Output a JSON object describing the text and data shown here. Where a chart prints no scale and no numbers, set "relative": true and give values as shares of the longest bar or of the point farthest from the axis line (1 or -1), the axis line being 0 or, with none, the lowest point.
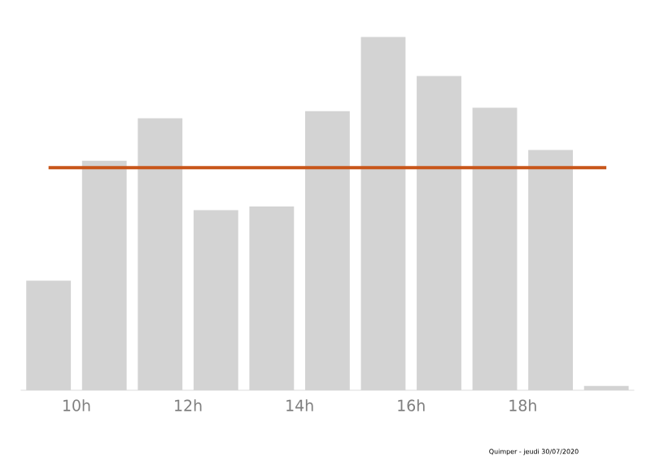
{
  "chart_data": {
    "type": "bar",
    "relative": true,
    "x": [
      9.5,
      10.5,
      11.5,
      12.5,
      13.5,
      14.5,
      15.5,
      16.5,
      17.5,
      18.5,
      19.5
    ],
    "values": [
      0.31,
      0.65,
      0.77,
      0.51,
      0.52,
      0.79,
      1,
      0.89,
      0.8,
      0.68,
      0.012
    ],
    "color": "#d3d3d3",
    "xlim": [
      9,
      20
    ],
    "xticks": [
      {
        "value": 10,
        "label": "10h"
      },
      {
        "value": 12,
        "label": "12h"
      },
      {
        "value": 14,
        "label": "14h"
      },
      {
        "value": 16,
        "label": "16h"
      },
      {
        "value": 18,
        "label": "18h"
      }
    ],
    "ref_lines": [
      {
        "axis": "y",
        "value": 0.63,
        "color": "#c8561a"
      }
    ],
    "annotations": [
      "Quimper - jeudi 30/07/2020"
    ]
  }
}
